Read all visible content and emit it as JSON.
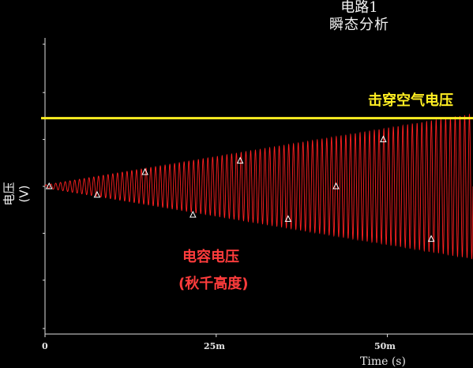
{
  "chart_data": {
    "type": "line",
    "title": "电路1",
    "subtitle": "瞬态分析",
    "xlabel": "Time (s)",
    "ylabel": "电压(V)",
    "x_tick_labels": [
      "0",
      "25m",
      "50m"
    ],
    "x_ticks": [
      0,
      0.025,
      0.05
    ],
    "xlim": [
      0,
      0.0625
    ],
    "ylim": [
      -1,
      1
    ],
    "series": [
      {
        "name": "电容电压",
        "color": "#ff2020",
        "kind": "growing-oscillation",
        "amplitude_start": 0.01,
        "amplitude_end": 0.51,
        "cycles": 90
      },
      {
        "name": "击穿空气电压",
        "color": "#ffee22",
        "kind": "horizontal",
        "y": 0.48
      }
    ],
    "markers": [
      {
        "x": 0.0006,
        "y": 0.0
      },
      {
        "x": 0.0076,
        "y": -0.06
      },
      {
        "x": 0.0146,
        "y": 0.1
      },
      {
        "x": 0.0216,
        "y": -0.2
      },
      {
        "x": 0.0285,
        "y": 0.18
      },
      {
        "x": 0.0355,
        "y": -0.23
      },
      {
        "x": 0.0425,
        "y": 0.0
      },
      {
        "x": 0.0494,
        "y": 0.33
      },
      {
        "x": 0.0564,
        "y": -0.37
      }
    ],
    "annotations": {
      "breakdown_label": "击穿空气电压",
      "capacitor_label_line1": "电容电压",
      "capacitor_label_line2": "(秋千高度)"
    },
    "grid": false
  }
}
